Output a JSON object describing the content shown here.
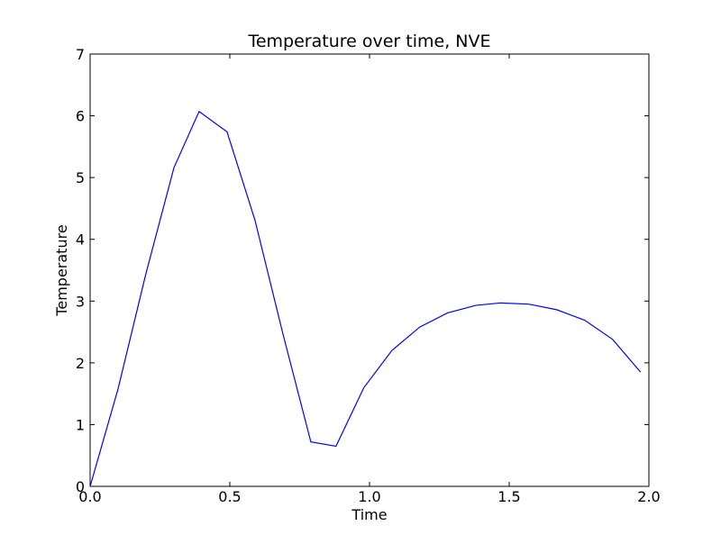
{
  "chart_data": {
    "type": "line",
    "title": "Temperature over time, NVE",
    "xlabel": "Time",
    "ylabel": "Temperature",
    "xlim": [
      0.0,
      2.0
    ],
    "ylim": [
      0,
      7
    ],
    "xticks": [
      "0.0",
      "0.5",
      "1.0",
      "1.5",
      "2.0"
    ],
    "yticks": [
      "0",
      "1",
      "2",
      "3",
      "4",
      "5",
      "6",
      "7"
    ],
    "grid": false,
    "line_color": "#0000ff",
    "x": [
      0.0,
      0.1,
      0.2,
      0.3,
      0.39,
      0.49,
      0.59,
      0.69,
      0.79,
      0.88,
      0.98,
      1.08,
      1.18,
      1.28,
      1.38,
      1.47,
      1.57,
      1.67,
      1.77,
      1.87,
      1.97
    ],
    "series": [
      {
        "values": [
          0.0,
          1.58,
          3.45,
          5.16,
          6.07,
          5.74,
          4.31,
          2.47,
          0.72,
          0.65,
          1.6,
          2.2,
          2.58,
          2.81,
          2.93,
          2.97,
          2.95,
          2.86,
          2.69,
          2.38,
          1.85
        ]
      }
    ]
  }
}
